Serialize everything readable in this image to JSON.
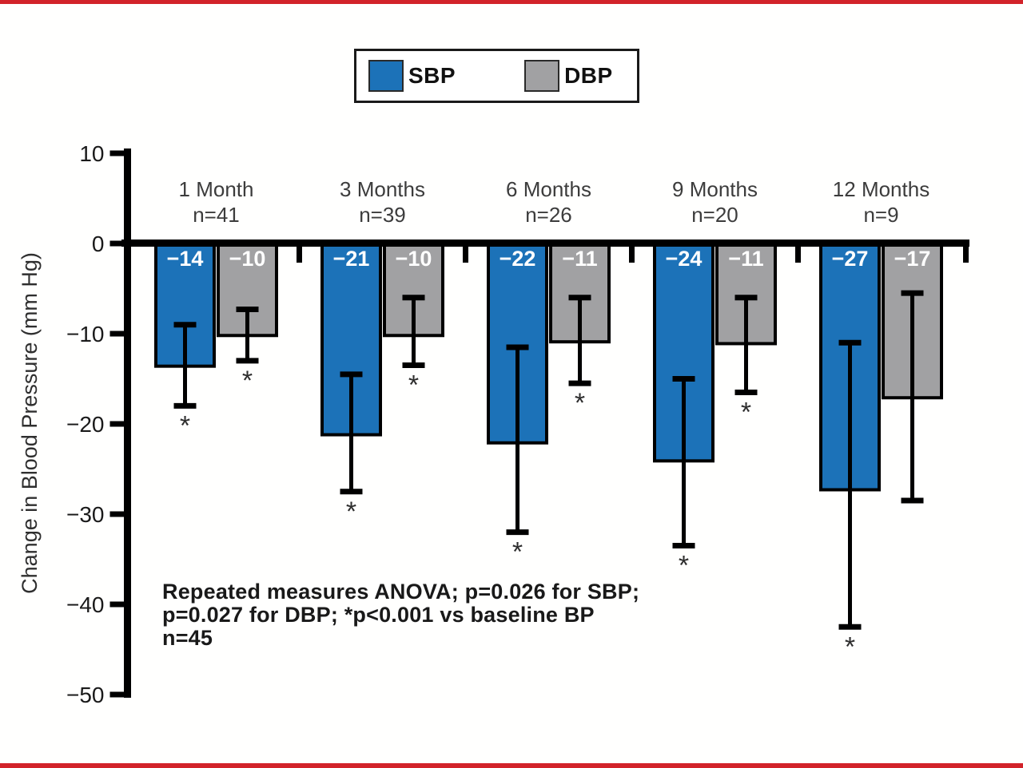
{
  "chart_data": {
    "type": "bar",
    "title": "",
    "ylabel": "Change in Blood Pressure (mm Hg)",
    "ylim": [
      -50,
      10
    ],
    "yticks": [
      10,
      0,
      -10,
      -20,
      -30,
      -40,
      -50
    ],
    "grid": false,
    "legend_position": "top-center",
    "categories": [
      {
        "label": "1 Month",
        "n_label": "n=41"
      },
      {
        "label": "3 Months",
        "n_label": "n=39"
      },
      {
        "label": "6 Months",
        "n_label": "n=26"
      },
      {
        "label": "9 Months",
        "n_label": "n=20"
      },
      {
        "label": "12 Months",
        "n_label": "n=9"
      }
    ],
    "series": [
      {
        "name": "SBP",
        "color": "#1c72b8",
        "values": [
          -13.6,
          -21.2,
          -22.1,
          -24.1,
          -27.3
        ],
        "bar_labels": [
          "−14",
          "−21",
          "−22",
          "−24",
          "−27"
        ],
        "error_high": [
          -9,
          -14.5,
          -11.5,
          -15,
          -11
        ],
        "error_low": [
          -18,
          -27.5,
          -32,
          -33.5,
          -42.5
        ],
        "significant": [
          true,
          true,
          true,
          true,
          true
        ]
      },
      {
        "name": "DBP",
        "color": "#a1a1a3",
        "values": [
          -10.2,
          -10.2,
          -10.9,
          -11.1,
          -17.1
        ],
        "bar_labels": [
          "−10",
          "−10",
          "−11",
          "−11",
          "−17"
        ],
        "error_high": [
          -7.3,
          -6,
          -6,
          -6,
          -5.5
        ],
        "error_low": [
          -13,
          -13.5,
          -15.5,
          -16.5,
          -28.5
        ],
        "significant": [
          true,
          true,
          true,
          true,
          false
        ]
      }
    ],
    "significance_symbol": "*",
    "annotation_lines": [
      "Repeated measures ANOVA; p=0.026 for SBP;",
      "p=0.027 for DBP; *p<0.001 vs baseline BP",
      "n=45"
    ]
  },
  "frame": {
    "accent_color": "#d2232a"
  }
}
